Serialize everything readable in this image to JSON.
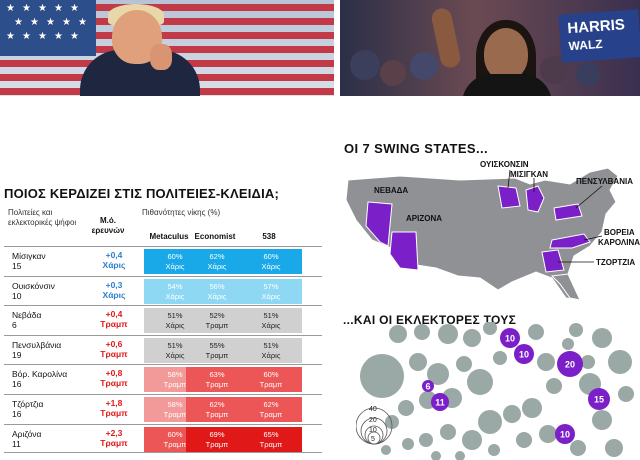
{
  "table": {
    "title": "ΠΟΙΟΣ ΚΕΡΔΙΖΕΙ ΣΤΙΣ ΠΟΛΙΤΕΙΕΣ-ΚΛΕΙΔΙΑ;",
    "header_states": "Πολιτείες και εκλεκτορικές ψήφοι",
    "header_avg": "Μ.ό. ερευνών",
    "header_prob": "Πιθανότητες νίκης (%)",
    "sources": [
      "Metaculus",
      "Economist",
      "538"
    ],
    "rows": [
      {
        "state": "Μίσιγκαν",
        "votes": "15",
        "avg_value": "+0,4",
        "avg_candidate": "Χάρις",
        "cells": [
          {
            "pct": "60%",
            "cand": "Χάρις"
          },
          {
            "pct": "62%",
            "cand": "Χάρις"
          },
          {
            "pct": "60%",
            "cand": "Χάρις"
          }
        ]
      },
      {
        "state": "Ουισκόνσιν",
        "votes": "10",
        "avg_value": "+0,3",
        "avg_candidate": "Χάρις",
        "cells": [
          {
            "pct": "54%",
            "cand": "Χάρις"
          },
          {
            "pct": "56%",
            "cand": "Χάρις"
          },
          {
            "pct": "57%",
            "cand": "Χάρις"
          }
        ]
      },
      {
        "state": "Νεβάδα",
        "votes": "6",
        "avg_value": "+0,4",
        "avg_candidate": "Τραμπ",
        "cells": [
          {
            "pct": "51%",
            "cand": "Χάρις"
          },
          {
            "pct": "52%",
            "cand": "Τραμπ"
          },
          {
            "pct": "51%",
            "cand": "Χάρις"
          }
        ]
      },
      {
        "state": "Πενσυλβάνια",
        "votes": "19",
        "avg_value": "+0,6",
        "avg_candidate": "Τραμπ",
        "cells": [
          {
            "pct": "51%",
            "cand": "Χάρις"
          },
          {
            "pct": "55%",
            "cand": "Τραμπ"
          },
          {
            "pct": "51%",
            "cand": "Χάρις"
          }
        ]
      },
      {
        "state": "Βόρ. Καρολίνα",
        "votes": "16",
        "avg_value": "+0,8",
        "avg_candidate": "Τραμπ",
        "cells": [
          {
            "pct": "58%",
            "cand": "Τραμπ"
          },
          {
            "pct": "63%",
            "cand": "Τραμπ"
          },
          {
            "pct": "60%",
            "cand": "Τραμπ"
          }
        ]
      },
      {
        "state": "Τζόρτζια",
        "votes": "16",
        "avg_value": "+1,8",
        "avg_candidate": "Τραμπ",
        "cells": [
          {
            "pct": "58%",
            "cand": "Τραμπ"
          },
          {
            "pct": "62%",
            "cand": "Τραμπ"
          },
          {
            "pct": "62%",
            "cand": "Τραμπ"
          }
        ]
      },
      {
        "state": "Αριζόνα",
        "votes": "11",
        "avg_value": "+2,3",
        "avg_candidate": "Τραμπ",
        "cells": [
          {
            "pct": "60%",
            "cand": "Τραμπ"
          },
          {
            "pct": "69%",
            "cand": "Τραμπ"
          },
          {
            "pct": "65%",
            "cand": "Τραμπ"
          }
        ]
      }
    ]
  },
  "map": {
    "title": "ΟΙ 7 SWING STATES...",
    "labels": {
      "wisconsin": "ΟΥΙΣΚΟΝΣΙΝ",
      "michigan": "ΜΙΣΙΓΚΑΝ",
      "pennsylvania": "ΠΕΝΣΥΛΒΑΝΙΑ",
      "nevada": "ΝΕΒΑΔΑ",
      "arizona": "ΑΡΙΖΟΝΑ",
      "north_carolina_1": "ΒΟΡΕΙΑ",
      "north_carolina_2": "ΚΑΡΟΛΙΝΑ",
      "georgia": "ΤΖΟΡΤΖΙΑ"
    }
  },
  "electors": {
    "title": "...ΚΑΙ ΟΙ ΕΚΛΕΚΤΟΡΕΣ ΤΟΥΣ",
    "highlighted": [
      {
        "label": "10"
      },
      {
        "label": "10"
      },
      {
        "label": "20"
      },
      {
        "label": "6"
      },
      {
        "label": "11"
      },
      {
        "label": "15"
      },
      {
        "label": "10"
      }
    ],
    "legend": [
      "40",
      "20",
      "10",
      "5"
    ]
  },
  "colors": {
    "harris_strong": "#19a9e8",
    "harris_light": "#8fd8f4",
    "neutral": "#d0d0d0",
    "trump_light": "#f29a9a",
    "trump_mid": "#ec5656",
    "trump_strong": "#e01818",
    "harris_text": "#2b7fd0",
    "trump_text": "#e01818",
    "swing_state": "#7b1fc8",
    "map_grey": "#8f9195",
    "bubble_grey": "#9aa9a6"
  }
}
